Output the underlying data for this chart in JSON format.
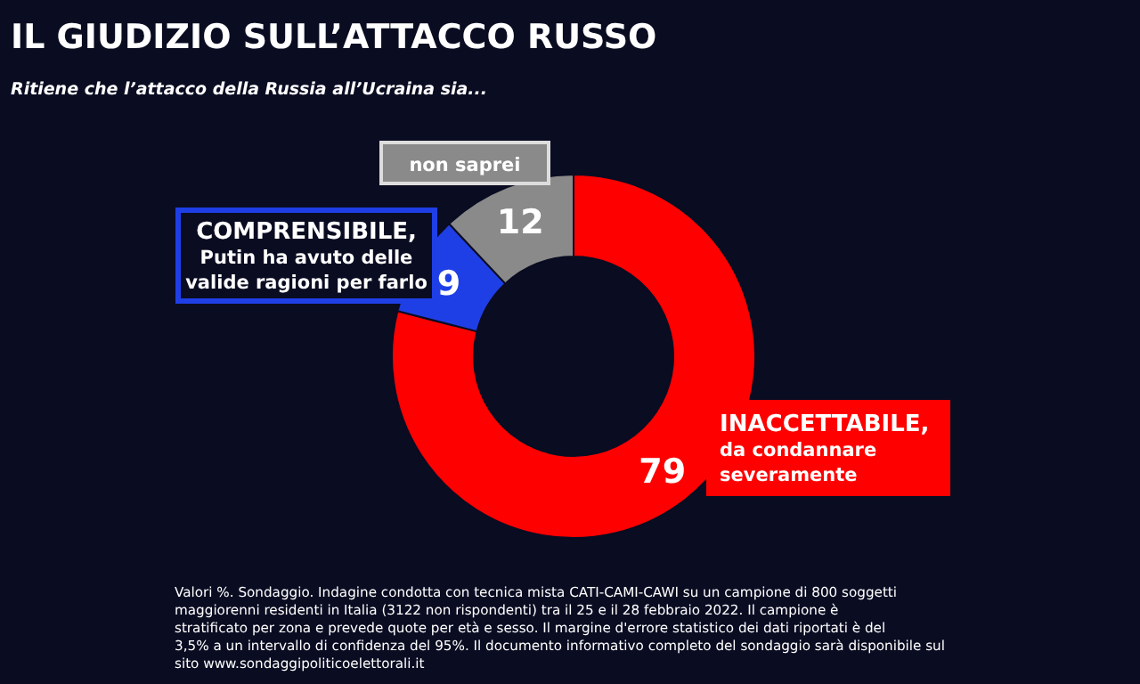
{
  "chart_data": {
    "type": "donut",
    "title": "IL GIUDIZIO SULL’ATTACCO RUSSO",
    "subtitle": "Ritiene che l’attacco della Russia all’Ucraina sia...",
    "categories": [
      "INACCETTABILE, da condannare severamente",
      "COMPRENSIBILE, Putin ha avuto delle valide ragioni per farlo",
      "non saprei"
    ],
    "values": [
      79,
      9,
      12
    ],
    "colors": [
      "#ff0000",
      "#1f3fe6",
      "#8a8a8a"
    ],
    "data_labels": true,
    "annotations": [
      "Valori %. Sondaggio. Indagine condotta con tecnica mista CATI-CAMI-CAWI su un campione di 800 soggetti maggiorenni residenti in Italia (3122 non rispondenti) tra il 25 e il 28 febbraio 2022. Il campione è stratificato per zona e prevede quote per età e sesso. Il margine d'errore statistico dei dati riportati è del 3,5% a un intervallo di confidenza del 95%. Il documento informativo completo del sondaggio sarà disponibile sul sito www.sondaggipoliticoelettorali.it"
    ]
  }
}
